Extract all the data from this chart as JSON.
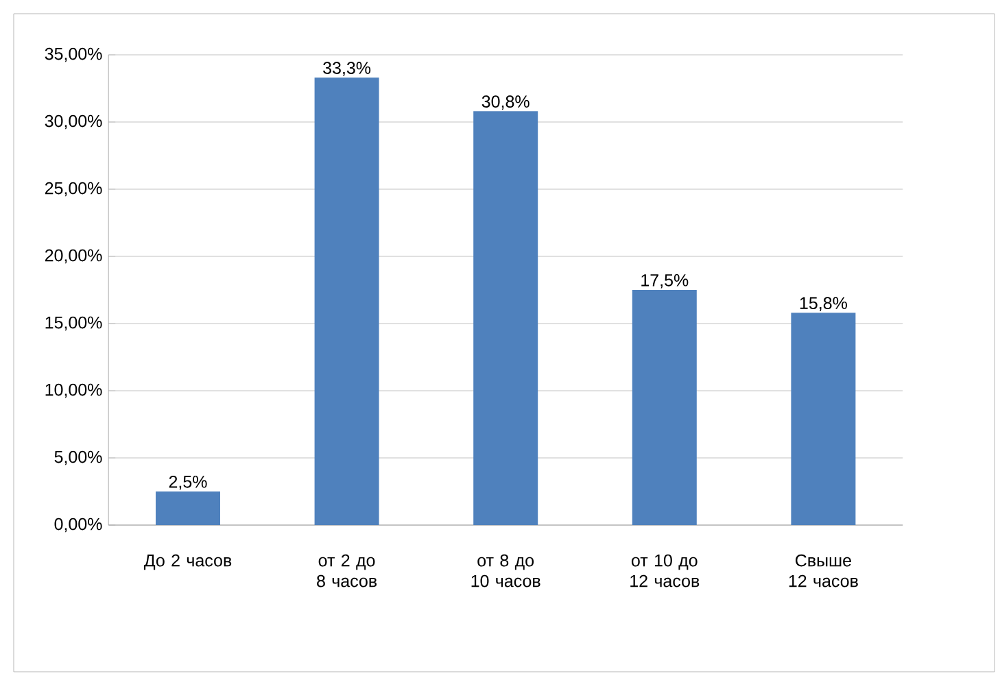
{
  "chart_data": {
    "type": "bar",
    "categories": [
      "До 2 часов",
      "от 2 до 8 часов",
      "от 8 до 10 часов",
      "от 10 до 12 часов",
      "Свыше 12 часов"
    ],
    "values": [
      2.5,
      33.3,
      30.8,
      17.5,
      15.8
    ],
    "value_labels": [
      "2,5%",
      "33,3%",
      "30,8%",
      "17,5%",
      "15,8%"
    ],
    "color": "#4f81bd",
    "ylim": [
      0,
      35
    ],
    "yticks": [
      {
        "value": 0,
        "label": "0,00%"
      },
      {
        "value": 5,
        "label": "5,00%"
      },
      {
        "value": 10,
        "label": "10,00%"
      },
      {
        "value": 15,
        "label": "15,00%"
      },
      {
        "value": 20,
        "label": "20,00%"
      },
      {
        "value": 25,
        "label": "25,00%"
      },
      {
        "value": 30,
        "label": "30,00%"
      },
      {
        "value": 35,
        "label": "35,00%"
      }
    ],
    "grid": "y"
  }
}
